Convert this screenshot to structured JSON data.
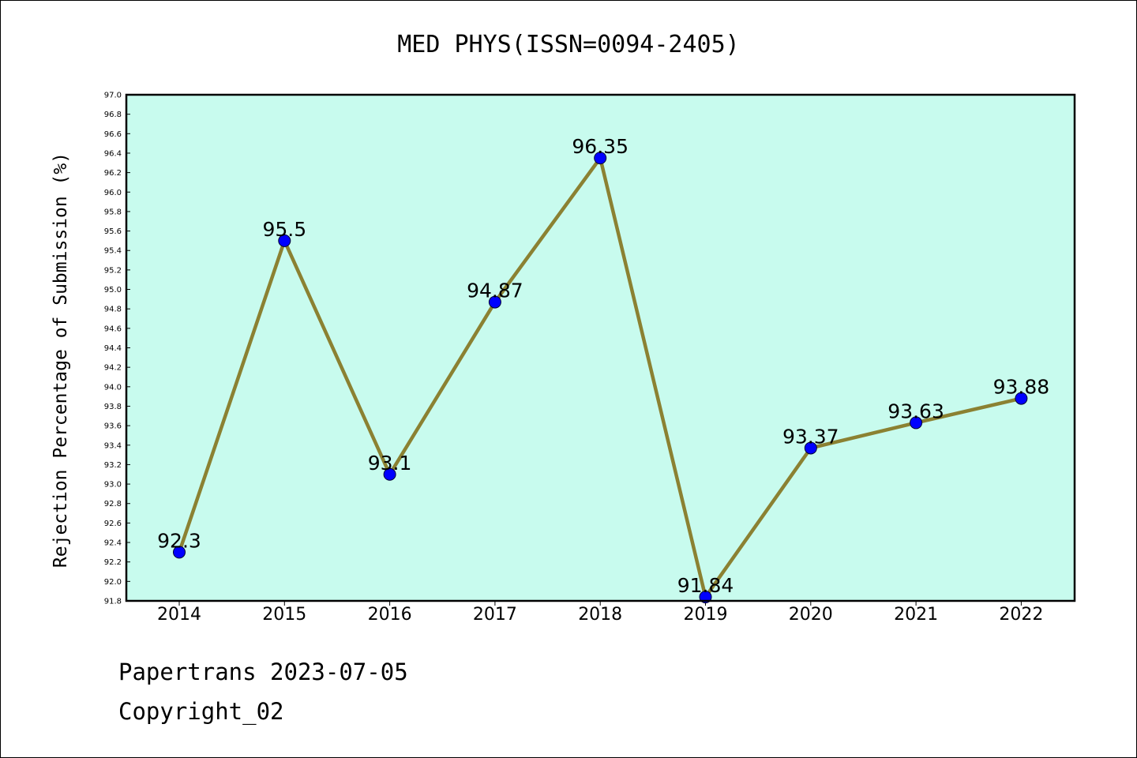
{
  "chart_data": {
    "type": "line",
    "title": "MED PHYS(ISSN=0094-2405)",
    "xlabel": "",
    "ylabel": "Rejection Percentage of Submission (%)",
    "categories": [
      "2014",
      "2015",
      "2016",
      "2017",
      "2018",
      "2019",
      "2020",
      "2021",
      "2022"
    ],
    "values": [
      92.3,
      95.5,
      93.1,
      94.87,
      96.35,
      91.84,
      93.37,
      93.63,
      93.88
    ],
    "value_labels": [
      "92.3",
      "95.5",
      "93.1",
      "94.87",
      "96.35",
      "91.84",
      "93.37",
      "93.63",
      "93.88"
    ],
    "ylim": [
      91.8,
      97.0
    ],
    "yticks": [
      "91.8",
      "92.0",
      "92.2",
      "92.4",
      "92.6",
      "92.8",
      "93.0",
      "93.2",
      "93.4",
      "93.6",
      "93.8",
      "94.0",
      "94.2",
      "94.4",
      "94.6",
      "94.8",
      "95.0",
      "95.2",
      "95.4",
      "95.6",
      "95.8",
      "96.0",
      "96.2",
      "96.4",
      "96.6",
      "96.8",
      "97.0"
    ],
    "grid": false,
    "colors": {
      "plot_background": "#c8fbee",
      "line": "#8b8132",
      "marker": "#0000ff"
    }
  },
  "footer": {
    "line1": "Papertrans 2023-07-05",
    "line2": "Copyright_02"
  }
}
